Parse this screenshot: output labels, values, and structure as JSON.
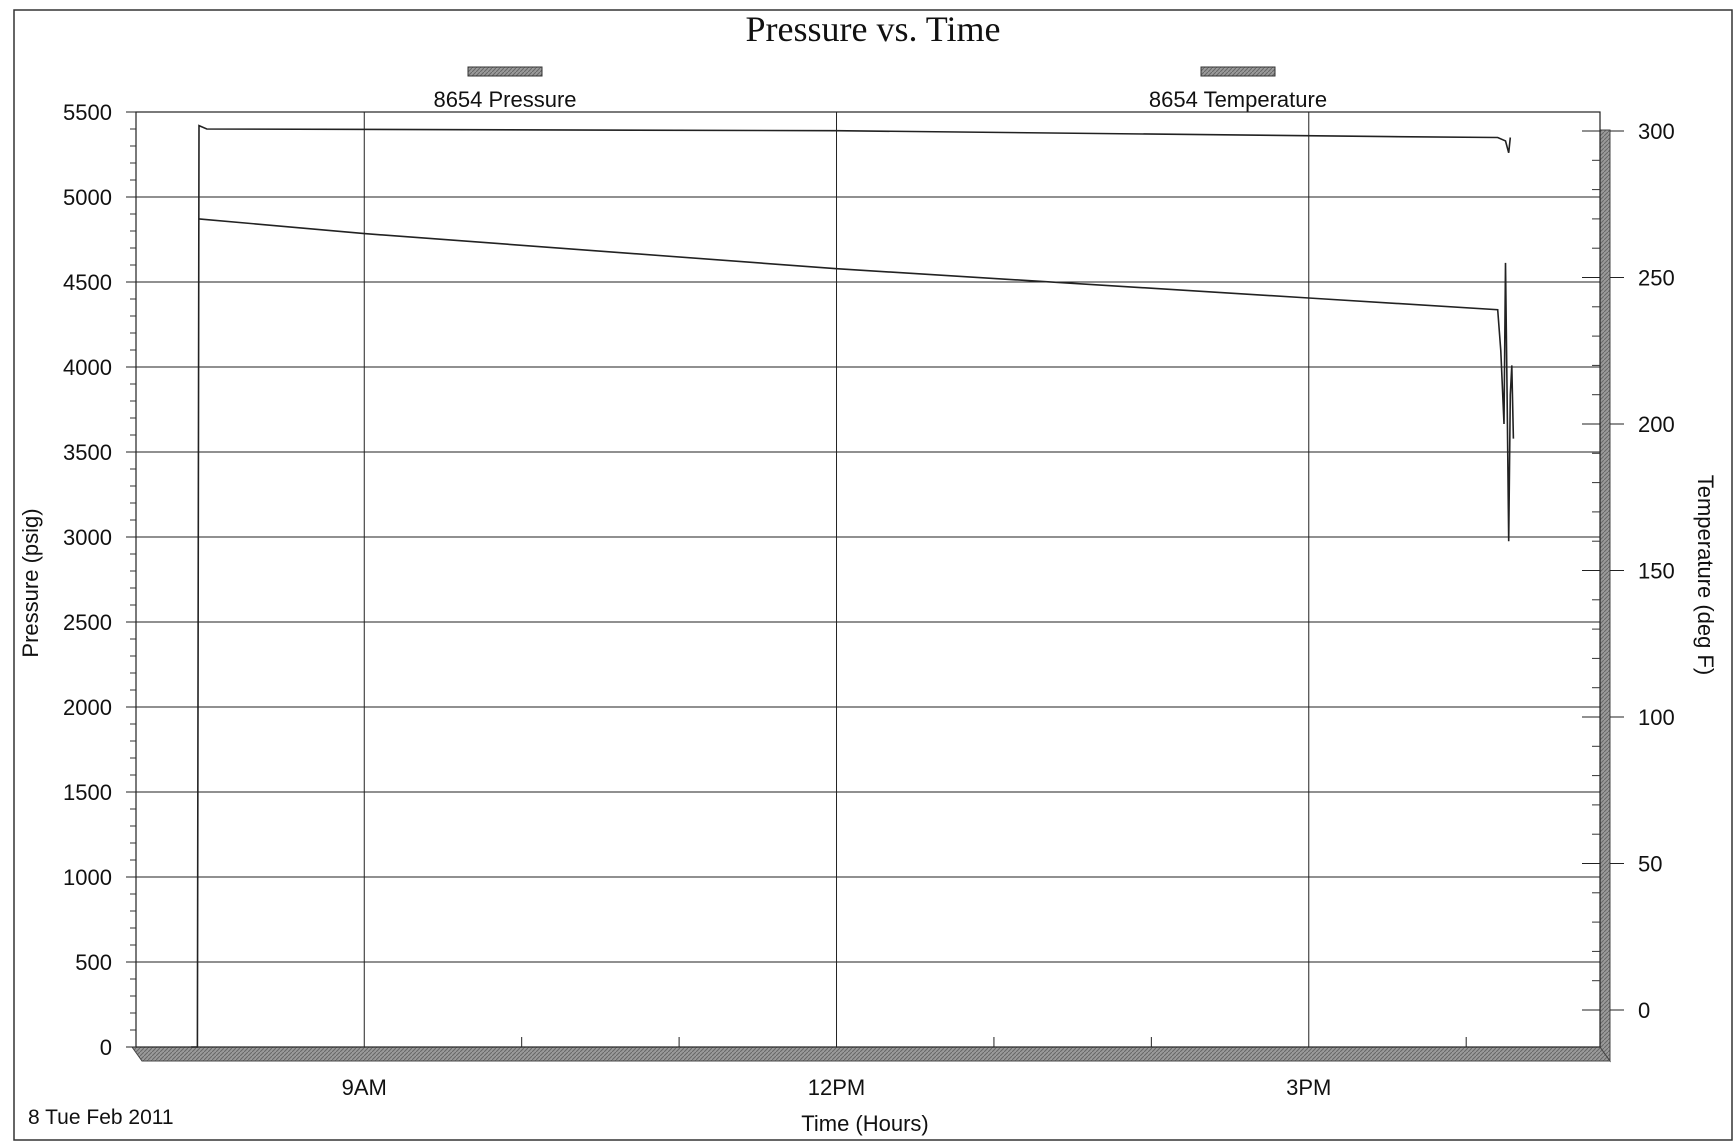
{
  "chart_data": {
    "type": "line",
    "title": "Pressure vs. Time",
    "xlabel": "Time (Hours)",
    "ylabel": "Pressure (psig)",
    "y2label": "Temperature (deg F)",
    "date_label": "8 Tue Feb 2011",
    "x_unit": "hours of day",
    "xlim": [
      7.55,
      16.85
    ],
    "ylim": [
      0,
      5500
    ],
    "y2lim": [
      0,
      300
    ],
    "x_ticks": [
      {
        "value": 9,
        "label": "9AM"
      },
      {
        "value": 12,
        "label": "12PM"
      },
      {
        "value": 15,
        "label": "3PM"
      }
    ],
    "x_minor_ticks": [
      10,
      11,
      13,
      14,
      16
    ],
    "y_ticks": [
      0,
      500,
      1000,
      1500,
      2000,
      2500,
      3000,
      3500,
      4000,
      4500,
      5000,
      5500
    ],
    "y_tick_labels": [
      "0",
      "500",
      "1000",
      "1500",
      "2000",
      "2500",
      "3000",
      "3500",
      "4000",
      "4500",
      "5000",
      "5500"
    ],
    "y2_ticks": [
      0,
      50,
      100,
      150,
      200,
      250,
      300
    ],
    "y2_tick_labels": [
      "0",
      "50",
      "100",
      "150",
      "200",
      "250",
      "300"
    ],
    "grid": true,
    "legend_position": "top",
    "series": [
      {
        "name": "8654 Pressure",
        "axis": "left",
        "color": "#222222",
        "points": [
          [
            7.9,
            0
          ],
          [
            7.94,
            0
          ],
          [
            7.95,
            5420
          ],
          [
            8.0,
            5400
          ],
          [
            12.0,
            5390
          ],
          [
            15.5,
            5355
          ],
          [
            16.2,
            5350
          ],
          [
            16.25,
            5330
          ],
          [
            16.27,
            5260
          ],
          [
            16.28,
            5350
          ]
        ]
      },
      {
        "name": "8654 Temperature",
        "axis": "right",
        "color": "#222222",
        "points": [
          [
            7.95,
            270
          ],
          [
            9.0,
            265
          ],
          [
            12.0,
            253
          ],
          [
            15.0,
            243
          ],
          [
            16.2,
            239
          ],
          [
            16.22,
            225
          ],
          [
            16.24,
            200
          ],
          [
            16.25,
            255
          ],
          [
            16.26,
            210
          ],
          [
            16.27,
            160
          ],
          [
            16.28,
            210
          ],
          [
            16.29,
            220
          ],
          [
            16.3,
            195
          ]
        ]
      }
    ]
  }
}
